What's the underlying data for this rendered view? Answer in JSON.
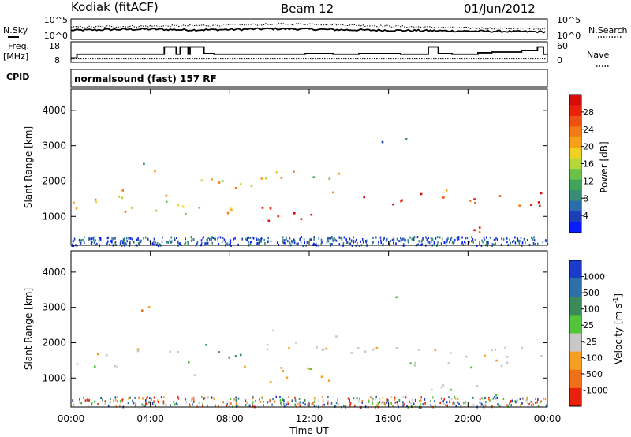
{
  "header": {
    "station": "Kodiak (fitACF)",
    "beam": "Beam 12",
    "date": "01/Jun/2012"
  },
  "strip_labels": {
    "nsky": "N.Sky",
    "nsearch": "N.Search",
    "freq": "Freq.",
    "freq_unit": "[MHz]",
    "nave": "Nave",
    "cpid": "CPID",
    "cpid_text": "normalsound (fast) 157 RF"
  },
  "chart_data": [
    {
      "type": "line",
      "name": "noise",
      "y_left_ticks": [
        "10^5",
        "10^0"
      ],
      "y_right_ticks": [
        "10^5",
        "10^0"
      ],
      "series": [
        {
          "name": "N.Sky",
          "style": "solid"
        },
        {
          "name": "N.Search",
          "style": "dotted"
        }
      ],
      "x": [
        0,
        2,
        4,
        6,
        8,
        10,
        12,
        14,
        16,
        18,
        20,
        22,
        24
      ],
      "nsky_log": [
        2.2,
        2.4,
        2.5,
        2.3,
        2.4,
        2.6,
        2.5,
        2.3,
        2.2,
        2.1,
        2.0,
        1.9,
        1.8
      ],
      "nsearch_log": [
        3.0,
        3.2,
        3.3,
        3.4,
        3.6,
        3.8,
        3.9,
        3.6,
        3.3,
        3.0,
        2.8,
        2.7,
        2.6
      ]
    },
    {
      "type": "line",
      "name": "freq-nave",
      "y_left_ticks": [
        "18",
        "8"
      ],
      "y_right_ticks": [
        "60",
        "0"
      ],
      "freq_steps": [
        [
          0,
          9
        ],
        [
          0.3,
          11.5
        ],
        [
          4.7,
          16.5
        ],
        [
          5.3,
          11.5
        ],
        [
          5.5,
          16.5
        ],
        [
          5.9,
          11.5
        ],
        [
          6.0,
          16.5
        ],
        [
          6.7,
          12.0
        ],
        [
          7.2,
          11.5
        ],
        [
          11.8,
          12.0
        ],
        [
          13.2,
          11.5
        ],
        [
          14.5,
          12.0
        ],
        [
          16.6,
          11.5
        ],
        [
          18.0,
          16.5
        ],
        [
          18.5,
          12.0
        ],
        [
          19.2,
          11.5
        ],
        [
          20.5,
          12.5
        ],
        [
          21.2,
          13.0
        ],
        [
          22.7,
          14.0
        ],
        [
          23.5,
          16.5
        ],
        [
          23.8,
          11.5
        ],
        [
          24,
          11.5
        ]
      ],
      "nave_level": 10
    },
    {
      "type": "heatmap",
      "name": "power",
      "ylabel": "Slant Range [km]",
      "y_ticks": [
        1000,
        2000,
        3000,
        4000
      ],
      "ylim": [
        180,
        4600
      ],
      "xlim": [
        0,
        24
      ],
      "colorbar": {
        "label": "Power [dB]",
        "ticks": [
          "4",
          "8",
          "12",
          "16",
          "20",
          "24",
          "28"
        ],
        "colors": [
          "#0a1cff",
          "#1b3fb8",
          "#2a6cae",
          "#3a8a74",
          "#3fa35a",
          "#6ac24a",
          "#b7d63a",
          "#f0d020",
          "#f6a01a",
          "#f37b15",
          "#ee5210",
          "#e8230c",
          "#d60d0d"
        ]
      },
      "features": [
        {
          "t0": 0.0,
          "t1": 3.2,
          "r0": 1150,
          "r1": 1900,
          "level": 9
        },
        {
          "t0": 3.2,
          "t1": 4.2,
          "r0": 1900,
          "r1": 2600,
          "level": 6
        },
        {
          "t0": 4.2,
          "t1": 6.0,
          "r0": 900,
          "r1": 1800,
          "level": 7
        },
        {
          "t0": 6.0,
          "t1": 8.5,
          "r0": 1100,
          "r1": 2200,
          "level": 7
        },
        {
          "t0": 8.5,
          "t1": 12.8,
          "r0": 850,
          "r1": 1300,
          "level": 12
        },
        {
          "t0": 9.0,
          "t1": 13.5,
          "r0": 1700,
          "r1": 2300,
          "level": 6
        },
        {
          "t0": 14.2,
          "t1": 18.0,
          "r0": 1300,
          "r1": 1700,
          "level": 11
        },
        {
          "t0": 18.2,
          "t1": 24.0,
          "r0": 1300,
          "r1": 1800,
          "level": 10
        },
        {
          "t0": 18.5,
          "t1": 20.8,
          "r0": 450,
          "r1": 800,
          "level": 11
        },
        {
          "t0": 15.5,
          "t1": 17.2,
          "r0": 3100,
          "r1": 3500,
          "level": 3
        }
      ]
    },
    {
      "type": "heatmap",
      "name": "velocity",
      "ylabel": "Slant Range [km]",
      "xlabel": "Time UT",
      "x_ticks": [
        "00:00",
        "04:00",
        "08:00",
        "12:00",
        "16:00",
        "20:00",
        "00:00"
      ],
      "y_ticks": [
        1000,
        2000,
        3000,
        4000
      ],
      "ylim": [
        180,
        4600
      ],
      "xlim": [
        0,
        24
      ],
      "colorbar": {
        "label": "Velocity [m s",
        "label_sup": "-1",
        "label_close": "]",
        "ticks": [
          "1000",
          "500",
          "100",
          "25",
          "-25",
          "-100",
          "-500",
          "-1000"
        ],
        "colors": [
          "#1a3cc8",
          "#2e6fa6",
          "#3a8a5a",
          "#54c43a",
          "#c8c8c8",
          "#f5a020",
          "#f07018",
          "#e8200c"
        ]
      },
      "features": [
        {
          "t0": 0.0,
          "t1": 3.5,
          "r0": 1300,
          "r1": 1900,
          "cls": "grey"
        },
        {
          "t0": 3.5,
          "t1": 4.6,
          "r0": 2500,
          "r1": 3100,
          "cls": "orange"
        },
        {
          "t0": 4.6,
          "t1": 6.3,
          "r0": 1100,
          "r1": 1800,
          "cls": "grey"
        },
        {
          "t0": 6.3,
          "t1": 8.8,
          "r0": 1500,
          "r1": 2000,
          "cls": "green-blue"
        },
        {
          "t0": 8.5,
          "t1": 13.0,
          "r0": 900,
          "r1": 1400,
          "cls": "orange-green"
        },
        {
          "t0": 9.5,
          "t1": 13.5,
          "r0": 1800,
          "r1": 2400,
          "cls": "grey"
        },
        {
          "t0": 14.0,
          "t1": 24.0,
          "r0": 1300,
          "r1": 1900,
          "cls": "grey"
        },
        {
          "t0": 17.8,
          "t1": 21.5,
          "r0": 450,
          "r1": 900,
          "cls": "grey"
        },
        {
          "t0": 16.0,
          "t1": 17.0,
          "r0": 3200,
          "r1": 3600,
          "cls": "green"
        }
      ]
    }
  ]
}
